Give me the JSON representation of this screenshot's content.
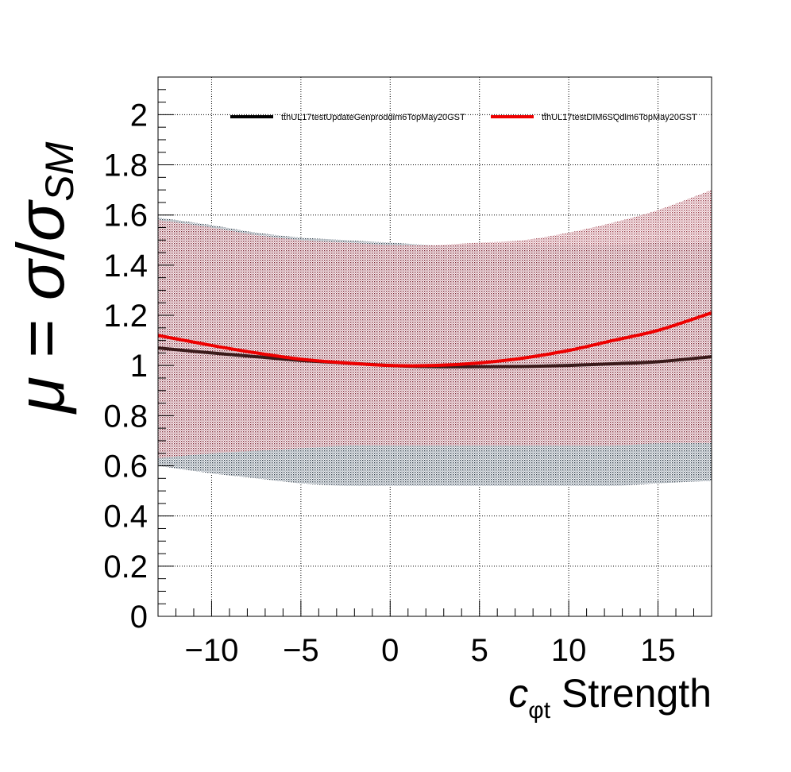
{
  "chart_data": {
    "type": "line",
    "xlabel_symbol": "c",
    "xlabel_subscript": "φt",
    "xlabel_suffix": " Strength",
    "ylabel_mu": "μ",
    "ylabel_eq": " = ",
    "ylabel_sigma": "σ",
    "ylabel_slash": "/",
    "ylabel_sigma2": "σ",
    "ylabel_sub": "SM",
    "xlim": [
      -13,
      18
    ],
    "ylim": [
      0,
      2.15
    ],
    "grid": true,
    "legend_position": "top",
    "x_ticks": [
      -10,
      -5,
      0,
      5,
      10,
      15
    ],
    "x_tick_labels": [
      "−10",
      "−5",
      "0",
      "5",
      "10",
      "15"
    ],
    "y_ticks": [
      0,
      0.2,
      0.4,
      0.6,
      0.8,
      1,
      1.2,
      1.4,
      1.6,
      1.8,
      2
    ],
    "y_tick_labels": [
      "0",
      "0.2",
      "0.4",
      "0.6",
      "0.8",
      "1",
      "1.2",
      "1.4",
      "1.6",
      "1.8",
      "2"
    ],
    "series": [
      {
        "name": "tt̄hUL17testUpdateGenproddim6TopMay20GST",
        "color": "#000000",
        "band_color": "#4a5a6a",
        "x": [
          -13,
          -10,
          -7.5,
          -5,
          -2.5,
          0,
          2.5,
          5,
          7.5,
          10,
          12.5,
          15,
          18
        ],
        "y": [
          1.07,
          1.05,
          1.035,
          1.02,
          1.01,
          1.0,
          0.995,
          0.995,
          0.996,
          1.0,
          1.007,
          1.015,
          1.035
        ],
        "band_upper": [
          1.59,
          1.56,
          1.53,
          1.51,
          1.5,
          1.49,
          1.48,
          1.48,
          1.48,
          1.48,
          1.48,
          1.49,
          1.49
        ],
        "band_lower": [
          0.6,
          0.57,
          0.55,
          0.53,
          0.52,
          0.52,
          0.52,
          0.52,
          0.52,
          0.52,
          0.52,
          0.53,
          0.54
        ]
      },
      {
        "name": "tt̄hUL17testDIM6SQdim6TopMay20GST",
        "color": "#ee0000",
        "band_color": "#9a2a3a",
        "x": [
          -13,
          -10,
          -7.5,
          -5,
          -2.5,
          0,
          2.5,
          5,
          7.5,
          10,
          12.5,
          15,
          18
        ],
        "y": [
          1.12,
          1.08,
          1.05,
          1.025,
          1.01,
          1.0,
          1.0,
          1.01,
          1.03,
          1.06,
          1.1,
          1.14,
          1.21
        ],
        "band_upper": [
          1.58,
          1.55,
          1.52,
          1.5,
          1.49,
          1.48,
          1.48,
          1.49,
          1.5,
          1.53,
          1.57,
          1.62,
          1.7
        ],
        "band_lower": [
          0.63,
          0.65,
          0.66,
          0.67,
          0.68,
          0.68,
          0.68,
          0.68,
          0.68,
          0.68,
          0.68,
          0.69,
          0.69
        ]
      }
    ]
  }
}
